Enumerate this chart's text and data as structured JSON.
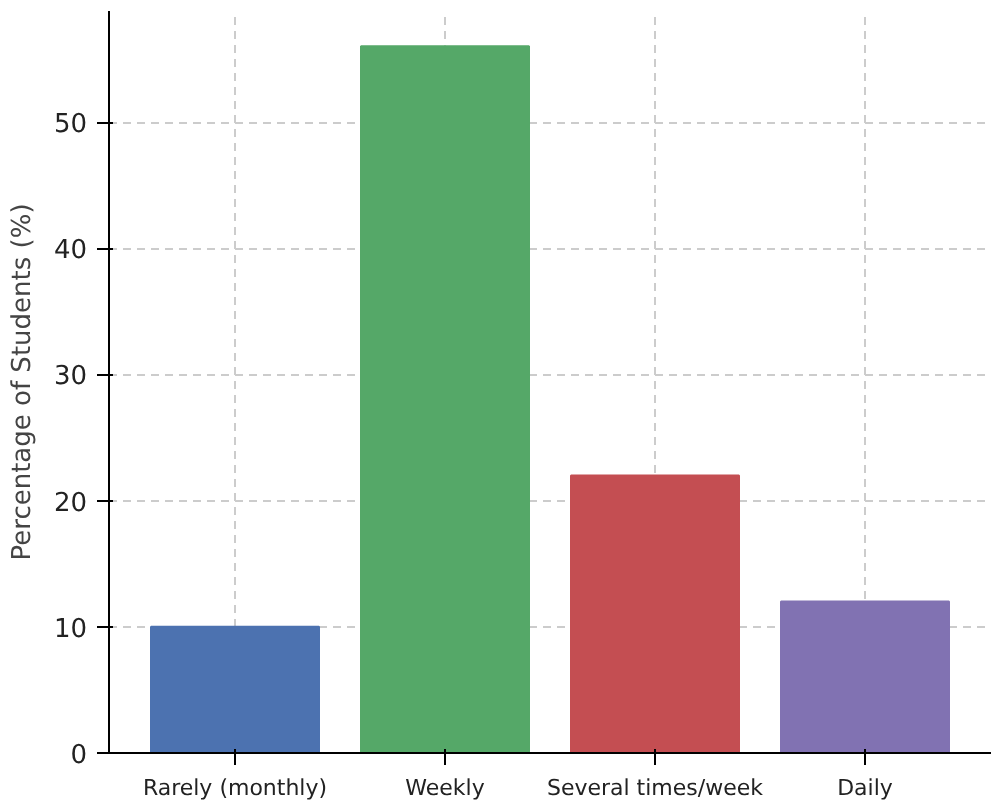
{
  "chart_data": {
    "type": "bar",
    "categories": [
      "Rarely (monthly)",
      "Weekly",
      "Several times/week",
      "Daily"
    ],
    "values": [
      10,
      56,
      22,
      12
    ],
    "colors": [
      "#4c72b0",
      "#55a868",
      "#c44e52",
      "#8172b2"
    ],
    "ylabel": "Percentage of Students (%)",
    "ylim": [
      0,
      58.8
    ],
    "yticks": [
      0,
      10,
      20,
      30,
      40,
      50
    ],
    "grid": true
  }
}
